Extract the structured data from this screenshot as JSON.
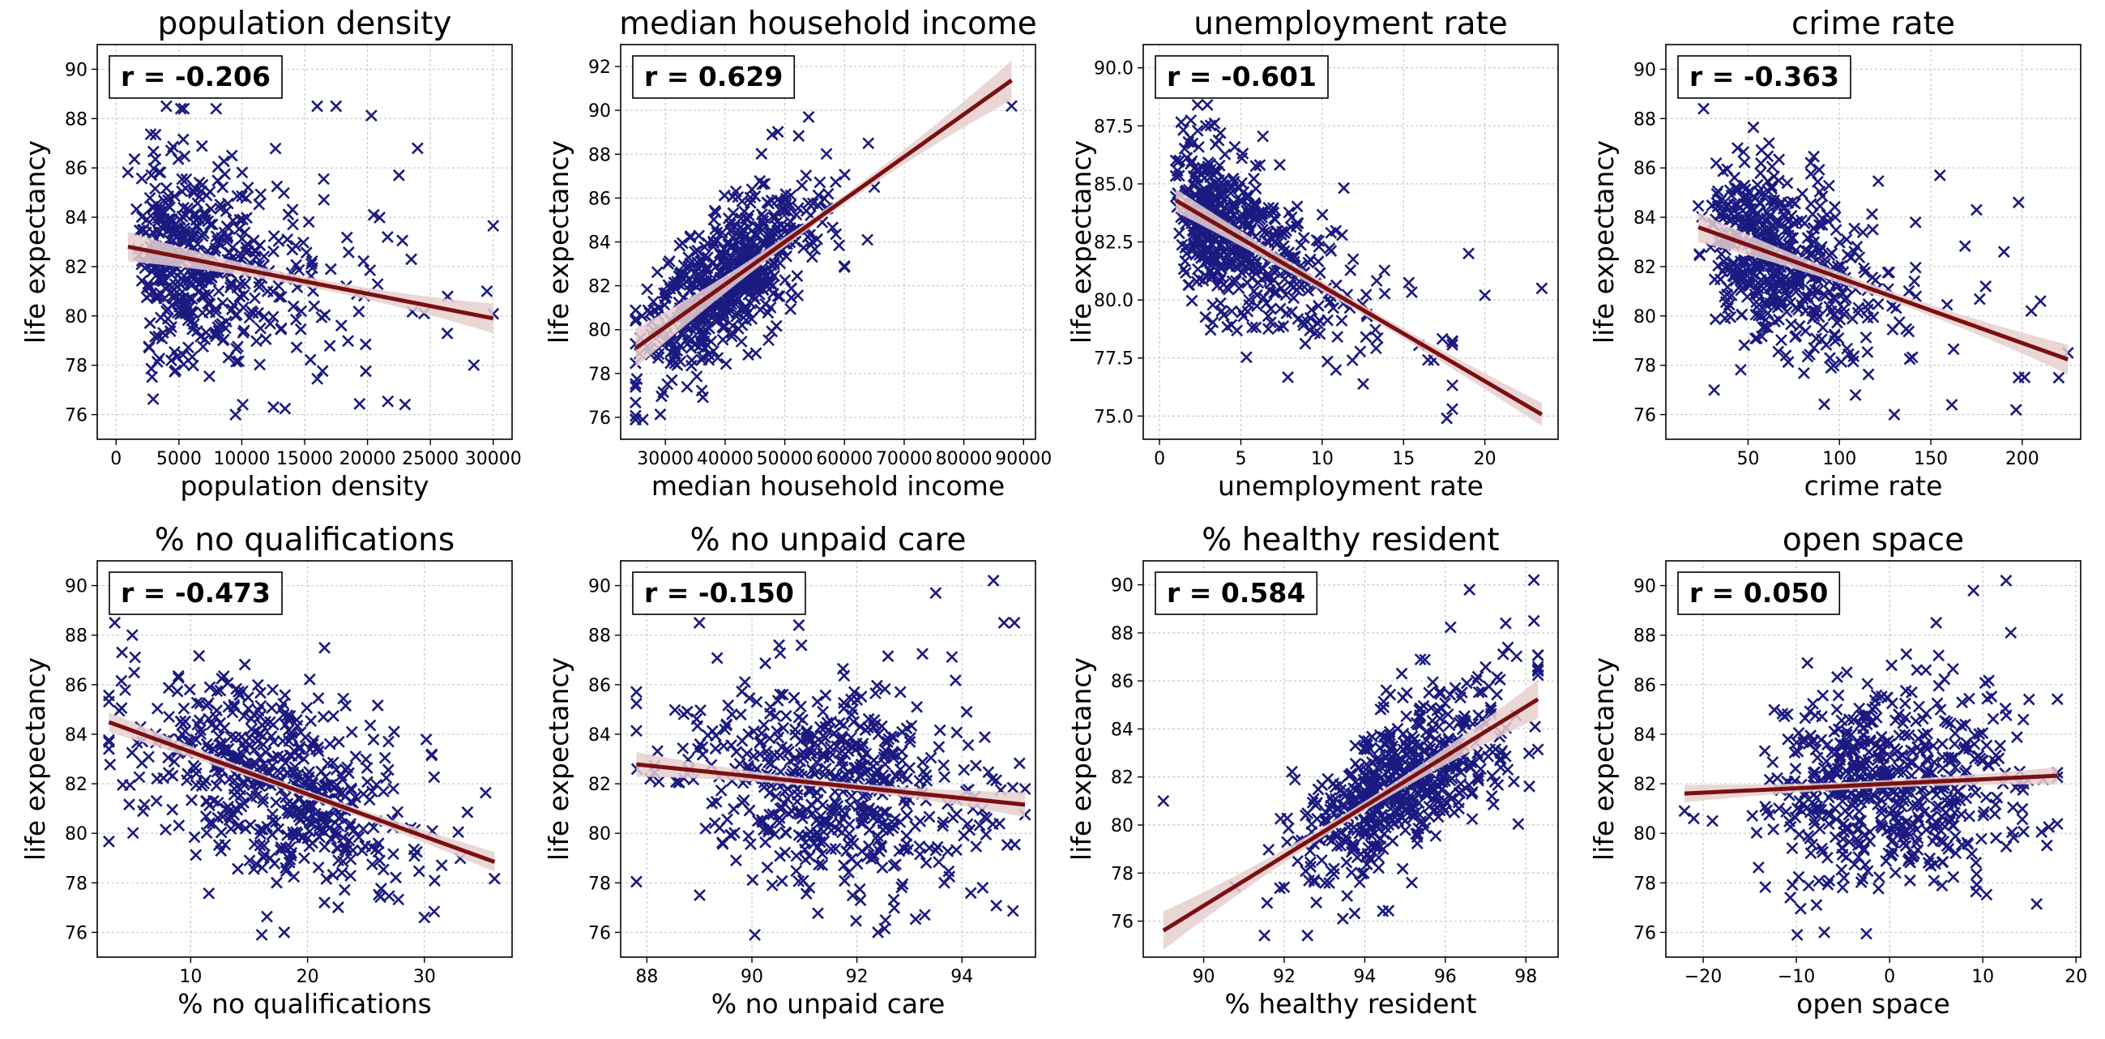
{
  "figure": {
    "colors": {
      "points": "#1a1a80",
      "fit_line": "#7a1010",
      "band": "#e7cfcf",
      "grid": "#c8c8c8"
    },
    "marker": "x"
  },
  "chart_data": [
    {
      "type": "scatter",
      "title": "population density",
      "xlabel": "population density",
      "ylabel": "life expectancy",
      "r_label": "r = -0.206",
      "xlim": [
        -1500,
        31500
      ],
      "ylim": [
        75,
        91
      ],
      "xticks": [
        0,
        5000,
        10000,
        15000,
        20000,
        25000,
        30000
      ],
      "yticks": [
        76,
        78,
        80,
        82,
        84,
        86,
        88,
        90
      ],
      "fit": {
        "slope": -0.0001,
        "intercept": 82.9
      },
      "band": [
        0.2,
        0.6
      ],
      "x_dist": {
        "type": "lognormal",
        "mean": 7500,
        "sd": 4500,
        "min": 0,
        "max": 30000
      },
      "points": {
        "n": 520,
        "noise": 2.1,
        "seed": 11
      },
      "outliers": [
        [
          29500,
          81.0
        ],
        [
          24500,
          80.1
        ],
        [
          22500,
          85.7
        ],
        [
          20500,
          84.1
        ],
        [
          9500,
          76.0
        ],
        [
          17500,
          88.5
        ],
        [
          16000,
          88.5
        ],
        [
          4000,
          88.5
        ]
      ]
    },
    {
      "type": "scatter",
      "title": "median household income",
      "xlabel": "median household income",
      "ylabel": "life expectancy",
      "r_label": "r = 0.629",
      "xlim": [
        22500,
        92000
      ],
      "ylim": [
        75,
        93
      ],
      "xticks": [
        30000,
        40000,
        50000,
        60000,
        70000,
        80000,
        90000
      ],
      "yticks": [
        76,
        78,
        80,
        82,
        84,
        86,
        88,
        90,
        92
      ],
      "fit": {
        "slope": 0.000194,
        "intercept": 74.3
      },
      "band": [
        0.2,
        0.9
      ],
      "x_dist": {
        "type": "normal",
        "mean": 40000,
        "sd": 7000,
        "min": 25000,
        "max": 65000
      },
      "points": {
        "n": 580,
        "noise": 1.6,
        "seed": 23
      },
      "outliers": [
        [
          88000,
          90.2
        ],
        [
          64000,
          88.5
        ],
        [
          65000,
          86.5
        ],
        [
          60000,
          82.9
        ],
        [
          54000,
          89.7
        ]
      ]
    },
    {
      "type": "scatter",
      "title": "unemployment rate",
      "xlabel": "unemployment rate",
      "ylabel": "life expectancy",
      "r_label": "r = -0.601",
      "xlim": [
        -1,
        24.5
      ],
      "ylim": [
        74,
        91
      ],
      "xticks": [
        0,
        5,
        10,
        15,
        20
      ],
      "yticks": [
        75.0,
        77.5,
        80.0,
        82.5,
        85.0,
        87.5,
        90.0
      ],
      "ytick_decimals": 1,
      "fit": {
        "slope": -0.41,
        "intercept": 84.7
      },
      "band": [
        0.2,
        0.5
      ],
      "x_dist": {
        "type": "lognormal",
        "mean": 5.5,
        "sd": 3.5,
        "min": 1,
        "max": 18
      },
      "points": {
        "n": 560,
        "noise": 1.7,
        "seed": 37
      },
      "outliers": [
        [
          23.5,
          80.5
        ],
        [
          20,
          80.2
        ],
        [
          19,
          82.0
        ],
        [
          18,
          78.2
        ],
        [
          5.5,
          80.0
        ]
      ]
    },
    {
      "type": "scatter",
      "title": "crime rate",
      "xlabel": "crime rate",
      "ylabel": "life expectancy",
      "r_label": "r = -0.363",
      "xlim": [
        5,
        232
      ],
      "ylim": [
        75,
        91
      ],
      "xticks": [
        50,
        100,
        150,
        200
      ],
      "yticks": [
        76,
        78,
        80,
        82,
        84,
        86,
        88,
        90
      ],
      "fit": {
        "slope": -0.0265,
        "intercept": 84.2
      },
      "band": [
        0.2,
        0.6
      ],
      "x_dist": {
        "type": "lognormal",
        "mean": 72,
        "sd": 28,
        "min": 20,
        "max": 220
      },
      "points": {
        "n": 540,
        "noise": 1.9,
        "seed": 41
      },
      "outliers": [
        [
          225,
          78.5
        ],
        [
          210,
          80.6
        ],
        [
          205,
          80.2
        ],
        [
          198,
          77.5
        ],
        [
          198,
          84.6
        ],
        [
          190,
          82.6
        ],
        [
          180,
          81.2
        ],
        [
          175,
          84.3
        ],
        [
          155,
          85.7
        ],
        [
          130,
          76.0
        ]
      ]
    },
    {
      "type": "scatter",
      "title": "% no qualifications",
      "xlabel": "% no qualifications",
      "ylabel": "life expectancy",
      "r_label": "r = -0.473",
      "xlim": [
        2,
        37.5
      ],
      "ylim": [
        75,
        91
      ],
      "xticks": [
        10,
        20,
        30
      ],
      "yticks": [
        76,
        78,
        80,
        82,
        84,
        86,
        88,
        90
      ],
      "fit": {
        "slope": -0.171,
        "intercept": 85.0
      },
      "band": [
        0.15,
        0.4
      ],
      "x_dist": {
        "type": "normal",
        "mean": 17,
        "sd": 6,
        "min": 3,
        "max": 36
      },
      "points": {
        "n": 540,
        "noise": 1.9,
        "seed": 53
      },
      "outliers": [
        [
          3.5,
          88.5
        ],
        [
          5,
          88.0
        ],
        [
          30,
          76.6
        ],
        [
          18,
          76.0
        ]
      ]
    },
    {
      "type": "scatter",
      "title": "% no unpaid care",
      "xlabel": "% no unpaid care",
      "ylabel": "life expectancy",
      "r_label": "r = -0.150",
      "xlim": [
        87.5,
        95.4
      ],
      "ylim": [
        75,
        91
      ],
      "xticks": [
        88,
        90,
        92,
        94
      ],
      "yticks": [
        76,
        78,
        80,
        82,
        84,
        86,
        88,
        90
      ],
      "fit": {
        "slope": -0.22,
        "intercept": 102.1
      },
      "band": [
        0.15,
        0.5
      ],
      "x_dist": {
        "type": "normal",
        "mean": 91.5,
        "sd": 1.5,
        "min": 87.8,
        "max": 95.2
      },
      "points": {
        "n": 560,
        "noise": 2.0,
        "seed": 67
      },
      "outliers": [
        [
          94.6,
          90.2
        ],
        [
          95,
          88.5
        ],
        [
          94.8,
          88.5
        ],
        [
          93.5,
          89.7
        ],
        [
          89,
          88.5
        ],
        [
          92.4,
          76.0
        ]
      ]
    },
    {
      "type": "scatter",
      "title": "% healthy resident",
      "xlabel": "% healthy resident",
      "ylabel": "life expectancy",
      "r_label": "r = 0.584",
      "xlim": [
        88.5,
        98.8
      ],
      "ylim": [
        74.5,
        91
      ],
      "xticks": [
        90,
        92,
        94,
        96,
        98
      ],
      "yticks": [
        76,
        78,
        80,
        82,
        84,
        86,
        88,
        90
      ],
      "fit": {
        "slope": 1.036,
        "intercept": -16.6
      },
      "band": [
        0.2,
        0.8
      ],
      "x_dist": {
        "type": "normal",
        "mean": 95.0,
        "sd": 1.4,
        "min": 90.5,
        "max": 98.3
      },
      "points": {
        "n": 580,
        "noise": 1.6,
        "seed": 71
      },
      "outliers": [
        [
          89.0,
          81.0
        ],
        [
          98.2,
          90.2
        ],
        [
          98.2,
          88.5
        ],
        [
          97.5,
          88.4
        ],
        [
          96.6,
          89.8
        ]
      ]
    },
    {
      "type": "scatter",
      "title": "open space",
      "xlabel": "open space",
      "ylabel": "life expectancy",
      "r_label": "r = 0.050",
      "xlim": [
        -24,
        20.5
      ],
      "ylim": [
        75,
        91
      ],
      "xticks": [
        -20,
        -10,
        0,
        10,
        20
      ],
      "yticks": [
        76,
        78,
        80,
        82,
        84,
        86,
        88,
        90
      ],
      "fit": {
        "slope": 0.018,
        "intercept": 82.0
      },
      "band": [
        0.15,
        0.35
      ],
      "x_dist": {
        "type": "normal",
        "mean": 0,
        "sd": 7,
        "min": -22,
        "max": 18
      },
      "points": {
        "n": 580,
        "noise": 2.1,
        "seed": 83
      },
      "outliers": [
        [
          -22,
          80.9
        ],
        [
          -21,
          80.6
        ],
        [
          -19,
          80.5
        ],
        [
          12.5,
          90.2
        ],
        [
          9,
          89.8
        ],
        [
          5,
          88.5
        ],
        [
          -7,
          76.0
        ],
        [
          13,
          88.1
        ]
      ]
    }
  ]
}
